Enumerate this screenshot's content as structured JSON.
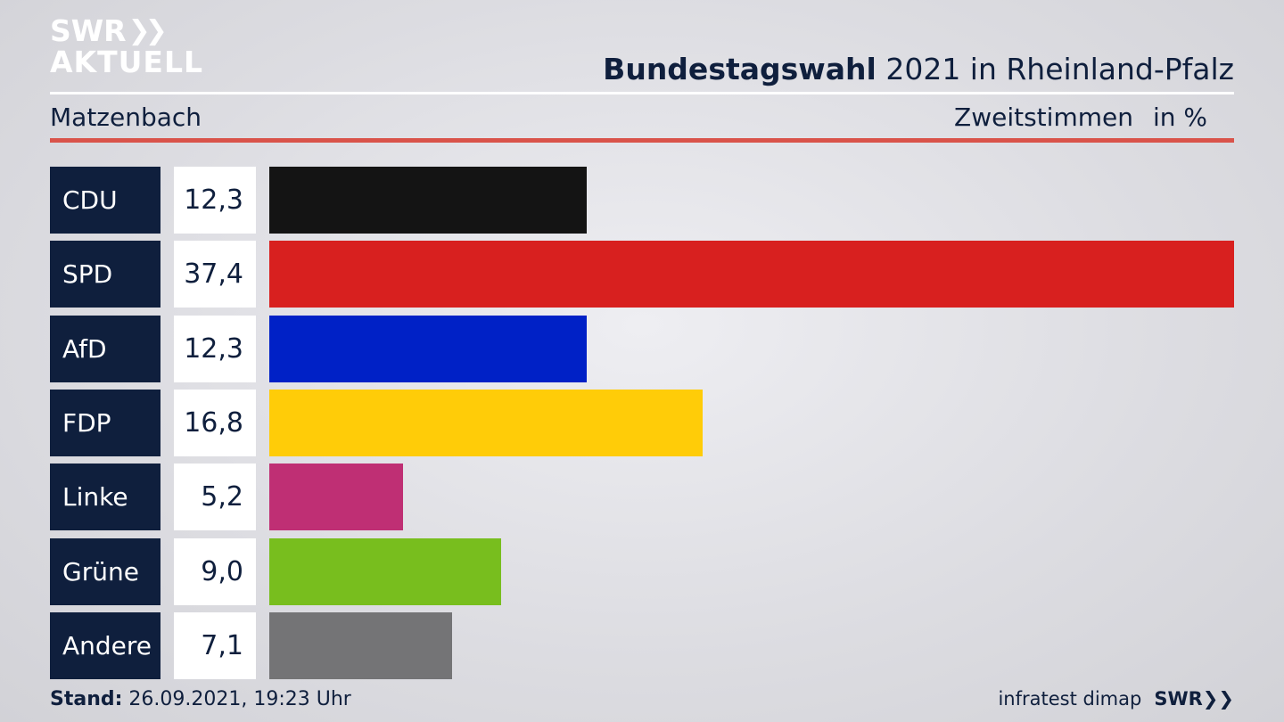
{
  "branding": {
    "logo_line1": "SWR",
    "logo_line2": "AKTUELL",
    "footer_source": "infratest dimap",
    "footer_logo": "SWR"
  },
  "header": {
    "title_bold": "Bundestagswahl",
    "title_rest": "2021 in Rheinland-Pfalz",
    "place": "Matzenbach",
    "measure": "Zweitstimmen",
    "unit": "in %"
  },
  "footer": {
    "stand_label": "Stand:",
    "stand_value": "26.09.2021, 19:23 Uhr"
  },
  "colors": {
    "accent_red_rule": "#d9534a",
    "navy": "#0f1f3d"
  },
  "chart_data": {
    "type": "bar",
    "orientation": "horizontal",
    "categories": [
      "CDU",
      "SPD",
      "AfD",
      "FDP",
      "Linke",
      "Grüne",
      "Andere"
    ],
    "values": [
      12.3,
      37.4,
      12.3,
      16.8,
      5.2,
      9.0,
      7.1
    ],
    "value_labels": [
      "12,3",
      "37,4",
      "12,3",
      "16,8",
      "5,2",
      "9,0",
      "7,1"
    ],
    "colors": [
      "#141414",
      "#d8201f",
      "#0021c6",
      "#ffcc08",
      "#bf2f74",
      "#78be1e",
      "#747476"
    ],
    "xlim": [
      0,
      37.4
    ]
  }
}
